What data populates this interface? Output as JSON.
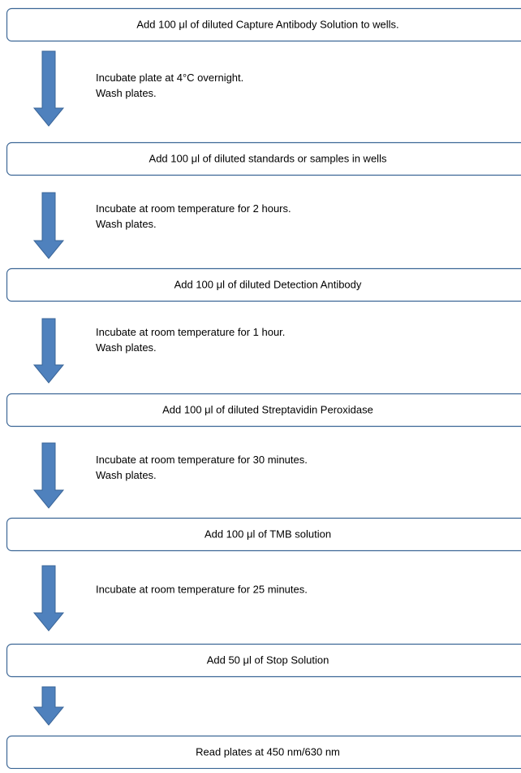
{
  "steps": [
    {
      "label": "Add 100 μl of diluted Capture Antibody Solution to wells."
    },
    {
      "label": "Add 100 μl of diluted standards or samples in wells"
    },
    {
      "label": "Add 100 μl of diluted Detection Antibody"
    },
    {
      "label": "Add 100 μl of diluted Streptavidin Peroxidase"
    },
    {
      "label": "Add 100 μl of TMB solution"
    },
    {
      "label": "Add 50 μl of Stop Solution"
    },
    {
      "label": "Read plates at 450 nm/630 nm"
    }
  ],
  "transitions": [
    {
      "lines": [
        "Incubate plate at 4°C overnight.",
        "Wash plates."
      ]
    },
    {
      "lines": [
        "Incubate at room temperature for 2 hours.",
        "Wash plates."
      ]
    },
    {
      "lines": [
        "Incubate at room temperature for 1 hour.",
        "Wash plates."
      ]
    },
    {
      "lines": [
        "Incubate at room temperature for 30 minutes.",
        "Wash plates."
      ]
    },
    {
      "lines": [
        "Incubate at room temperature for 25 minutes."
      ]
    },
    {
      "lines": []
    }
  ]
}
